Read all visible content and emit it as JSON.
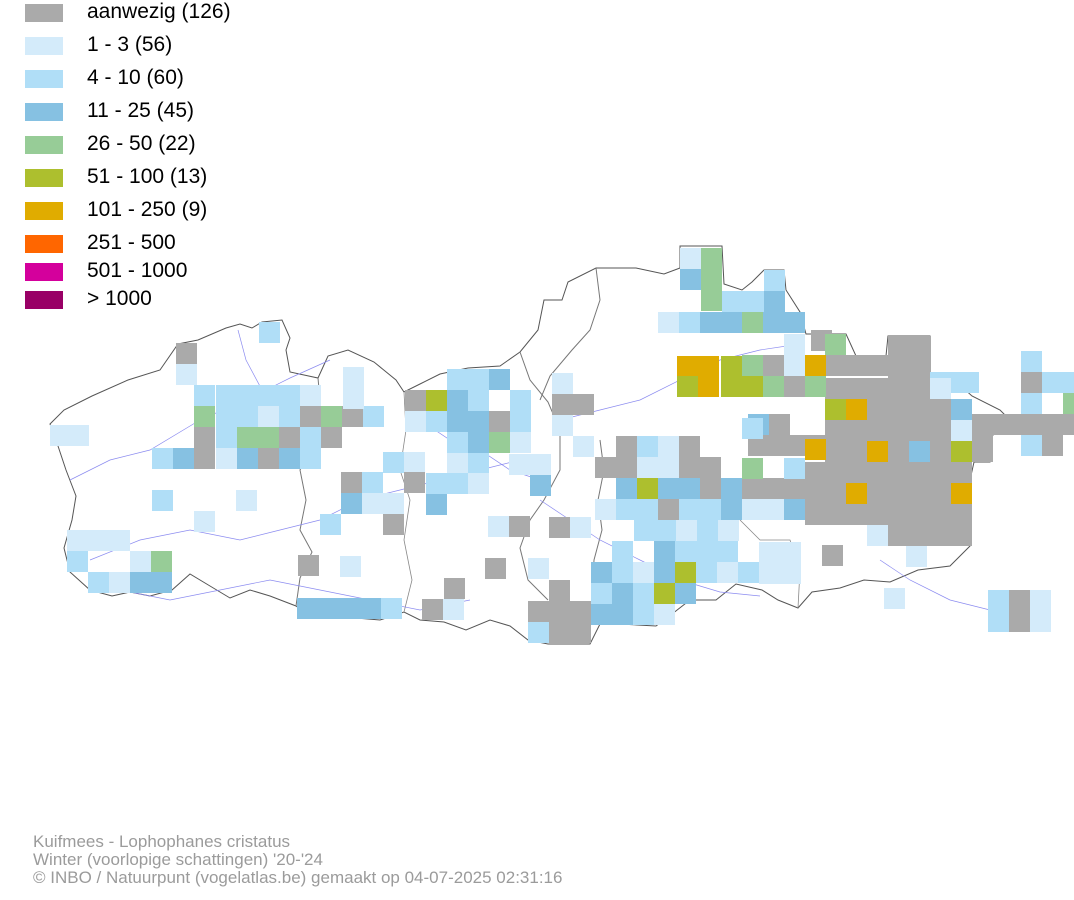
{
  "legend": [
    {
      "label": "aanwezig (126)",
      "color": "#aaaaaa"
    },
    {
      "label": "1 - 3 (56)",
      "color": "#d4ebfa"
    },
    {
      "label": "4 - 10 (60)",
      "color": "#b0def7"
    },
    {
      "label": "11 - 25 (45)",
      "color": "#86c1e2"
    },
    {
      "label": "26 - 50 (22)",
      "color": "#97cc97"
    },
    {
      "label": "51 - 100 (13)",
      "color": "#adbf2e"
    },
    {
      "label": "101 - 250 (9)",
      "color": "#e0ac00"
    },
    {
      "label": "251 - 500",
      "color": "#ff6600"
    },
    {
      "label": "501 - 1000",
      "color": "#d4009c"
    },
    {
      "label": "> 1000",
      "color": "#990066"
    }
  ],
  "credits": {
    "species": "Kuifmees - Lophophanes cristatus",
    "season": "Winter (voorlopige schattingen) '20-'24",
    "copyright": "© INBO / Natuurpunt (vogelatlas.be) gemaakt op 04-07-2025 02:31:16"
  },
  "map": {
    "class_colors": [
      "#aaaaaa",
      "#d4ebfa",
      "#b0def7",
      "#86c1e2",
      "#97cc97",
      "#adbf2e",
      "#e0ac00"
    ],
    "grid": [
      [
        11,
        0,
        0
      ],
      [
        21,
        1,
        2
      ],
      [
        8,
        2,
        1
      ],
      [
        9,
        2,
        0
      ],
      [
        15,
        2,
        2
      ],
      [
        16,
        2,
        2
      ],
      [
        17,
        2,
        2
      ],
      [
        18,
        2,
        2
      ],
      [
        21,
        2,
        0
      ],
      [
        22,
        2,
        2
      ],
      [
        23,
        2,
        2
      ],
      [
        24,
        2,
        2
      ],
      [
        25,
        2,
        4
      ],
      [
        26,
        2,
        2
      ],
      [
        27,
        2,
        2
      ],
      [
        12,
        3,
        5
      ],
      [
        13,
        3,
        3
      ],
      [
        21,
        3,
        2
      ],
      [
        23,
        3,
        4
      ],
      [
        24,
        3,
        3
      ],
      [
        8,
        4,
        3
      ],
      [
        9,
        4,
        0
      ],
      [
        14,
        4,
        0
      ],
      [
        15,
        4,
        2
      ],
      [
        16,
        4,
        0
      ],
      [
        17,
        4,
        0
      ],
      [
        18,
        4,
        0
      ],
      [
        19,
        4,
        0
      ],
      [
        20,
        4,
        0
      ],
      [
        21,
        4,
        0
      ],
      [
        22,
        4,
        0
      ],
      [
        23,
        4,
        0
      ],
      [
        24,
        4,
        0
      ],
      [
        25,
        4,
        4
      ],
      [
        26,
        4,
        4
      ],
      [
        8,
        5,
        0
      ],
      [
        9,
        5,
        0
      ],
      [
        10,
        5,
        0
      ],
      [
        11,
        5,
        0
      ],
      [
        15,
        5,
        0
      ],
      [
        16,
        5,
        0
      ],
      [
        21,
        5,
        2
      ],
      [
        22,
        5,
        0
      ]
    ],
    "cells": [
      [
        50,
        425,
        1
      ],
      [
        68,
        425,
        1
      ],
      [
        176,
        343,
        0
      ],
      [
        176,
        364,
        1
      ],
      [
        259,
        322,
        2
      ],
      [
        194,
        385,
        2
      ],
      [
        216,
        385,
        2
      ],
      [
        237,
        385,
        2
      ],
      [
        258,
        385,
        2
      ],
      [
        279,
        385,
        2
      ],
      [
        300,
        385,
        1
      ],
      [
        194,
        406,
        4
      ],
      [
        216,
        406,
        2
      ],
      [
        237,
        406,
        2
      ],
      [
        258,
        406,
        1
      ],
      [
        279,
        406,
        2
      ],
      [
        300,
        406,
        0
      ],
      [
        321,
        406,
        4
      ],
      [
        342,
        406,
        0
      ],
      [
        363,
        406,
        2
      ],
      [
        194,
        427,
        0
      ],
      [
        216,
        427,
        2
      ],
      [
        237,
        427,
        4
      ],
      [
        258,
        427,
        4
      ],
      [
        279,
        427,
        0
      ],
      [
        300,
        427,
        2
      ],
      [
        321,
        427,
        0
      ],
      [
        152,
        448,
        2
      ],
      [
        173,
        448,
        3
      ],
      [
        194,
        448,
        0
      ],
      [
        216,
        448,
        1
      ],
      [
        237,
        448,
        3
      ],
      [
        258,
        448,
        0
      ],
      [
        279,
        448,
        3
      ],
      [
        300,
        448,
        2
      ],
      [
        343,
        367,
        1
      ],
      [
        343,
        388,
        1
      ],
      [
        405,
        390,
        0
      ],
      [
        426,
        390,
        5
      ],
      [
        447,
        369,
        2
      ],
      [
        468,
        369,
        2
      ],
      [
        489,
        369,
        3
      ],
      [
        405,
        411,
        1
      ],
      [
        426,
        411,
        2
      ],
      [
        447,
        390,
        3
      ],
      [
        468,
        390,
        2
      ],
      [
        510,
        390,
        2
      ],
      [
        447,
        411,
        3
      ],
      [
        468,
        411,
        3
      ],
      [
        489,
        411,
        0
      ],
      [
        510,
        411,
        2
      ],
      [
        447,
        432,
        2
      ],
      [
        468,
        432,
        3
      ],
      [
        489,
        432,
        4
      ],
      [
        510,
        432,
        1
      ],
      [
        383,
        452,
        2
      ],
      [
        404,
        452,
        1
      ],
      [
        447,
        453,
        1
      ],
      [
        468,
        453,
        2
      ],
      [
        509,
        454,
        1
      ],
      [
        530,
        454,
        1
      ],
      [
        341,
        472,
        0
      ],
      [
        362,
        472,
        2
      ],
      [
        404,
        472,
        0
      ],
      [
        426,
        473,
        2
      ],
      [
        447,
        473,
        2
      ],
      [
        468,
        473,
        1
      ],
      [
        341,
        493,
        3
      ],
      [
        362,
        493,
        1
      ],
      [
        383,
        493,
        1
      ],
      [
        426,
        494,
        3
      ],
      [
        530,
        475,
        3
      ],
      [
        152,
        490,
        2
      ],
      [
        236,
        490,
        1
      ],
      [
        194,
        511,
        1
      ],
      [
        320,
        514,
        2
      ],
      [
        383,
        514,
        0
      ],
      [
        488,
        516,
        1
      ],
      [
        509,
        516,
        0
      ],
      [
        549,
        517,
        0
      ],
      [
        570,
        517,
        1
      ],
      [
        67,
        530,
        1
      ],
      [
        88,
        530,
        1
      ],
      [
        109,
        530,
        1
      ],
      [
        67,
        551,
        2
      ],
      [
        130,
        551,
        1
      ],
      [
        151,
        551,
        4
      ],
      [
        88,
        572,
        2
      ],
      [
        109,
        572,
        1
      ],
      [
        130,
        572,
        3
      ],
      [
        151,
        572,
        3
      ],
      [
        298,
        555,
        0
      ],
      [
        340,
        556,
        1
      ],
      [
        485,
        558,
        0
      ],
      [
        528,
        558,
        1
      ],
      [
        444,
        578,
        0
      ],
      [
        549,
        580,
        0
      ],
      [
        297,
        598,
        3
      ],
      [
        318,
        598,
        3
      ],
      [
        339,
        598,
        3
      ],
      [
        360,
        598,
        3
      ],
      [
        381,
        598,
        2
      ],
      [
        422,
        599,
        0
      ],
      [
        443,
        599,
        1
      ],
      [
        528,
        601,
        0
      ],
      [
        549,
        601,
        0
      ],
      [
        570,
        601,
        0
      ],
      [
        528,
        622,
        2
      ],
      [
        549,
        622,
        0
      ],
      [
        570,
        622,
        0
      ],
      [
        552,
        373,
        1
      ],
      [
        552,
        394,
        0
      ],
      [
        573,
        394,
        0
      ],
      [
        552,
        415,
        1
      ],
      [
        573,
        436,
        1
      ],
      [
        680,
        248,
        1
      ],
      [
        701,
        248,
        4
      ],
      [
        680,
        269,
        3
      ],
      [
        701,
        269,
        4
      ],
      [
        701,
        290,
        4
      ],
      [
        764,
        270,
        2
      ],
      [
        722,
        291,
        2
      ],
      [
        743,
        291,
        2
      ],
      [
        764,
        291,
        3
      ],
      [
        658,
        312,
        1
      ],
      [
        679,
        312,
        2
      ],
      [
        700,
        312,
        3
      ],
      [
        721,
        312,
        3
      ],
      [
        742,
        312,
        4
      ],
      [
        763,
        312,
        3
      ],
      [
        784,
        312,
        3
      ],
      [
        616,
        436,
        0
      ],
      [
        637,
        436,
        2
      ],
      [
        658,
        436,
        1
      ],
      [
        679,
        436,
        0
      ],
      [
        595,
        457,
        0
      ],
      [
        616,
        457,
        0
      ],
      [
        637,
        457,
        1
      ],
      [
        658,
        457,
        1
      ],
      [
        679,
        457,
        0
      ],
      [
        700,
        457,
        0
      ],
      [
        616,
        478,
        3
      ],
      [
        637,
        478,
        5
      ],
      [
        658,
        478,
        3
      ],
      [
        679,
        478,
        3
      ],
      [
        700,
        478,
        0
      ],
      [
        721,
        478,
        3
      ],
      [
        742,
        478,
        0
      ],
      [
        763,
        478,
        0
      ],
      [
        784,
        478,
        0
      ],
      [
        595,
        499,
        1
      ],
      [
        616,
        499,
        2
      ],
      [
        637,
        499,
        2
      ],
      [
        658,
        499,
        0
      ],
      [
        679,
        499,
        2
      ],
      [
        700,
        499,
        2
      ],
      [
        721,
        499,
        3
      ],
      [
        742,
        499,
        1
      ],
      [
        763,
        499,
        1
      ],
      [
        784,
        499,
        3
      ],
      [
        634,
        520,
        2
      ],
      [
        655,
        520,
        2
      ],
      [
        676,
        520,
        1
      ],
      [
        697,
        520,
        2
      ],
      [
        718,
        520,
        1
      ],
      [
        612,
        541,
        2
      ],
      [
        654,
        541,
        3
      ],
      [
        675,
        541,
        2
      ],
      [
        696,
        541,
        2
      ],
      [
        717,
        541,
        2
      ],
      [
        591,
        562,
        3
      ],
      [
        612,
        562,
        2
      ],
      [
        633,
        562,
        1
      ],
      [
        654,
        562,
        3
      ],
      [
        675,
        562,
        5
      ],
      [
        696,
        562,
        2
      ],
      [
        717,
        562,
        1
      ],
      [
        738,
        562,
        2
      ],
      [
        591,
        583,
        2
      ],
      [
        612,
        583,
        3
      ],
      [
        633,
        583,
        2
      ],
      [
        654,
        583,
        5
      ],
      [
        675,
        583,
        3
      ],
      [
        591,
        604,
        3
      ],
      [
        612,
        604,
        3
      ],
      [
        633,
        604,
        2
      ],
      [
        654,
        604,
        1
      ],
      [
        759,
        542,
        1
      ],
      [
        780,
        542,
        1
      ],
      [
        759,
        563,
        1
      ],
      [
        780,
        563,
        1
      ],
      [
        822,
        545,
        0
      ],
      [
        825,
        334,
        4
      ],
      [
        825,
        355,
        0
      ],
      [
        846,
        355,
        0
      ],
      [
        867,
        355,
        0
      ],
      [
        888,
        336,
        0
      ],
      [
        909,
        336,
        0
      ],
      [
        888,
        357,
        0
      ],
      [
        909,
        357,
        0
      ],
      [
        930,
        378,
        1
      ],
      [
        825,
        378,
        0
      ],
      [
        846,
        378,
        0
      ],
      [
        867,
        378,
        0
      ],
      [
        888,
        378,
        0
      ],
      [
        909,
        378,
        0
      ],
      [
        825,
        399,
        5
      ],
      [
        846,
        399,
        6
      ],
      [
        867,
        399,
        0
      ],
      [
        888,
        399,
        0
      ],
      [
        909,
        399,
        0
      ],
      [
        930,
        399,
        0
      ],
      [
        951,
        399,
        3
      ],
      [
        825,
        420,
        0
      ],
      [
        846,
        420,
        0
      ],
      [
        867,
        420,
        0
      ],
      [
        888,
        420,
        0
      ],
      [
        909,
        420,
        0
      ],
      [
        930,
        420,
        0
      ],
      [
        951,
        420,
        1
      ],
      [
        972,
        420,
        0
      ],
      [
        825,
        441,
        0
      ],
      [
        846,
        441,
        0
      ],
      [
        867,
        441,
        6
      ],
      [
        888,
        441,
        0
      ],
      [
        909,
        441,
        3
      ],
      [
        930,
        441,
        0
      ],
      [
        951,
        441,
        5
      ],
      [
        972,
        441,
        0
      ],
      [
        805,
        462,
        0
      ],
      [
        825,
        462,
        0
      ],
      [
        846,
        462,
        0
      ],
      [
        867,
        462,
        0
      ],
      [
        888,
        462,
        0
      ],
      [
        909,
        462,
        0
      ],
      [
        930,
        462,
        0
      ],
      [
        951,
        462,
        0
      ],
      [
        805,
        483,
        0
      ],
      [
        825,
        483,
        0
      ],
      [
        846,
        483,
        6
      ],
      [
        867,
        483,
        0
      ],
      [
        888,
        483,
        0
      ],
      [
        909,
        483,
        0
      ],
      [
        930,
        483,
        0
      ],
      [
        951,
        483,
        6
      ],
      [
        805,
        504,
        0
      ],
      [
        825,
        504,
        0
      ],
      [
        846,
        504,
        0
      ],
      [
        867,
        504,
        0
      ],
      [
        888,
        504,
        0
      ],
      [
        909,
        504,
        0
      ],
      [
        930,
        504,
        0
      ],
      [
        951,
        504,
        0
      ],
      [
        867,
        525,
        1
      ],
      [
        888,
        525,
        0
      ],
      [
        909,
        525,
        0
      ],
      [
        930,
        525,
        0
      ],
      [
        951,
        525,
        0
      ],
      [
        906,
        546,
        1
      ],
      [
        884,
        588,
        1
      ],
      [
        988,
        590,
        2
      ],
      [
        1009,
        590,
        0
      ],
      [
        1030,
        590,
        1
      ],
      [
        988,
        611,
        2
      ],
      [
        1009,
        611,
        0
      ],
      [
        1030,
        611,
        1
      ],
      [
        677,
        356,
        6
      ],
      [
        698,
        356,
        6
      ],
      [
        721,
        356,
        5
      ],
      [
        742,
        376,
        5
      ],
      [
        677,
        376,
        5
      ],
      [
        698,
        376,
        6
      ],
      [
        721,
        376,
        5
      ],
      [
        763,
        376,
        4
      ],
      [
        742,
        355,
        4
      ],
      [
        763,
        355,
        0
      ],
      [
        784,
        334,
        1
      ],
      [
        784,
        355,
        1
      ],
      [
        784,
        376,
        0
      ],
      [
        805,
        376,
        4
      ],
      [
        805,
        355,
        6
      ],
      [
        742,
        418,
        2
      ],
      [
        742,
        458,
        4
      ],
      [
        784,
        458,
        2
      ],
      [
        805,
        439,
        6
      ]
    ]
  }
}
